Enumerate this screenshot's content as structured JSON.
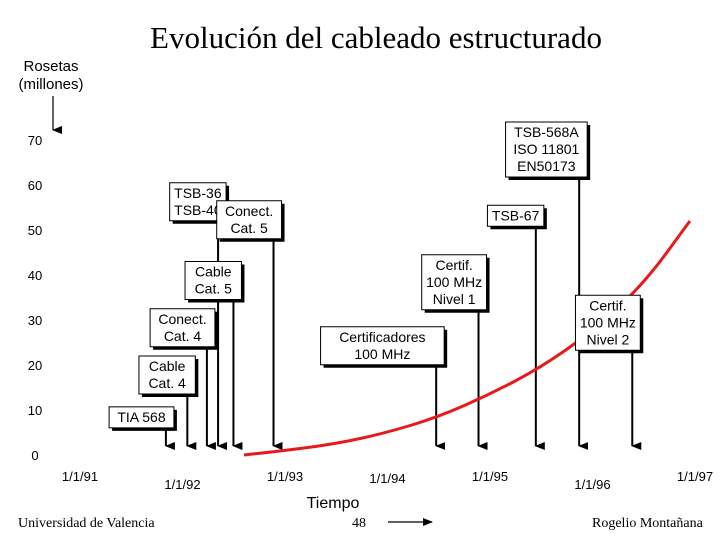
{
  "chart_data": {
    "type": "line",
    "title": "Evolución del cableado estructurado",
    "ylabel_lines": [
      "Rosetas",
      "(millones)"
    ],
    "xlabel": "Tiempo",
    "y_ticks": [
      "70",
      "60",
      "50",
      "40",
      "30",
      "20",
      "10",
      "0"
    ],
    "x_ticks": [
      "1/1/91",
      "1/1/92",
      "1/1/93",
      "1/1/94",
      "1/1/95",
      "1/1/96",
      "1/1/97"
    ],
    "ylim": [
      0,
      70
    ],
    "xlim": [
      1991,
      1997
    ],
    "series": [
      {
        "color": "#e8191c",
        "x": [
          1992.6,
          1993.0,
          1993.5,
          1994.0,
          1994.5,
          1995.0,
          1995.5,
          1996.0,
          1996.5,
          1996.95
        ],
        "y": [
          0,
          1.0,
          2.5,
          5.0,
          8.5,
          13.5,
          19.5,
          27.5,
          38.0,
          52.0
        ]
      }
    ],
    "annotations": [
      {
        "lines": [
          "TIA 568"
        ],
        "x": 1991.6,
        "y": 10.7
      },
      {
        "lines": [
          "Cable",
          "Cat. 4"
        ],
        "x": 1991.85,
        "y": 22.0
      },
      {
        "lines": [
          "Conect.",
          "Cat. 4"
        ],
        "x": 1992.0,
        "y": 32.5
      },
      {
        "lines": [
          "Cable",
          "Cat. 5"
        ],
        "x": 1992.3,
        "y": 43.0
      },
      {
        "lines": [
          "TSB-36",
          "TSB-40"
        ],
        "x": 1992.15,
        "y": 60.5
      },
      {
        "lines": [
          "Conect.",
          "Cat. 5"
        ],
        "x": 1992.65,
        "y": 56.5
      },
      {
        "lines": [
          "Certificadores",
          "100 MHz"
        ],
        "x": 1993.95,
        "y": 28.5
      },
      {
        "lines": [
          "Certif.",
          "100 MHz",
          "Nivel 1"
        ],
        "x": 1994.65,
        "y": 44.5
      },
      {
        "lines": [
          "TSB-67"
        ],
        "x": 1995.25,
        "y": 55.5
      },
      {
        "lines": [
          "TSB-568A",
          "ISO 11801",
          "EN50173"
        ],
        "x": 1995.55,
        "y": 74.0
      },
      {
        "lines": [
          "Certif.",
          "100 MHz",
          "Nivel 2"
        ],
        "x": 1996.15,
        "y": 35.5
      }
    ],
    "grid": false
  },
  "footer": {
    "left": "Universidad de Valencia",
    "center": "48",
    "right": "Rogelio Montañana"
  }
}
